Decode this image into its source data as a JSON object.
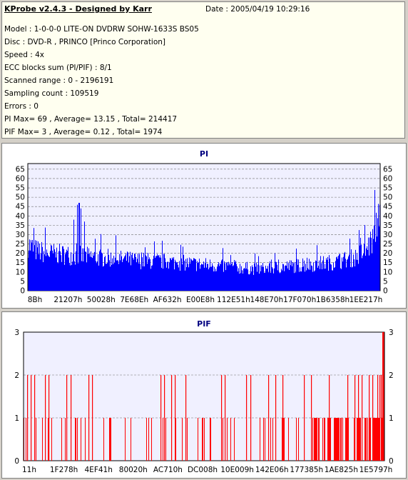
{
  "header": {
    "title": "KProbe v2.4.3 - Designed by Karr",
    "date": "Date : 2005/04/19 10:29:16"
  },
  "info_lines": [
    "Model : 1-0-0-0 LITE-ON DVDRW SOHW-1633S BS05",
    "Disc : DVD-R , PRINCO [Princo Corporation]",
    "Speed : 4x",
    "ECC blocks sum (PI/PIF) : 8/1",
    "Scanned range : 0 - 2196191",
    "Sampling count : 109519",
    "Errors : 0",
    "PI Max= 69 , Average= 13.15 , Total= 214417",
    "PIF Max= 3 , Average= 0.12 , Total= 1974"
  ],
  "colors": {
    "pi": "#0000ff",
    "pif": "#ff0000",
    "title": "#000080",
    "plot_bg": "#f0f0ff"
  },
  "chart_data": [
    {
      "type": "area",
      "title": "PI",
      "ylim": [
        0,
        68
      ],
      "yticks": [
        0,
        5,
        10,
        15,
        20,
        25,
        30,
        35,
        40,
        45,
        50,
        55,
        60,
        65
      ],
      "xtick_labels": [
        "8Bh",
        "21207h",
        "50028h",
        "7E68Eh",
        "AF632h",
        "E00E8h",
        "112E51h",
        "148E70h",
        "17F070h",
        "1B6358h",
        "1EE217h"
      ],
      "grid": true,
      "envelope": [
        [
          0,
          32
        ],
        [
          0.02,
          28
        ],
        [
          0.05,
          26
        ],
        [
          0.1,
          25
        ],
        [
          0.15,
          24
        ],
        [
          0.2,
          23
        ],
        [
          0.3,
          21
        ],
        [
          0.4,
          20
        ],
        [
          0.5,
          18
        ],
        [
          0.6,
          16
        ],
        [
          0.65,
          15
        ],
        [
          0.7,
          16
        ],
        [
          0.8,
          18
        ],
        [
          0.88,
          20
        ],
        [
          0.93,
          23
        ],
        [
          0.96,
          28
        ],
        [
          0.98,
          35
        ],
        [
          0.99,
          45
        ],
        [
          1.0,
          62
        ]
      ],
      "spikes": [
        [
          0.14,
          46
        ],
        [
          0.145,
          47
        ],
        [
          0.15,
          44
        ],
        [
          0.13,
          38
        ],
        [
          0.16,
          37
        ]
      ]
    },
    {
      "type": "bar",
      "title": "PIF",
      "ylim": [
        0,
        3
      ],
      "yticks": [
        0,
        1,
        2,
        3
      ],
      "xtick_labels": [
        "11h",
        "1F278h",
        "4EF41h",
        "80020h",
        "AC710h",
        "DC008h",
        "10E009h",
        "142E06h",
        "177385h",
        "1AE825h",
        "1E5797h"
      ],
      "grid": true,
      "bars_value_2": [
        0.01,
        0.02,
        0.03,
        0.06,
        0.07,
        0.12,
        0.13,
        0.18,
        0.19,
        0.38,
        0.39,
        0.41,
        0.42,
        0.45,
        0.55,
        0.56,
        0.62,
        0.63,
        0.68,
        0.7,
        0.72,
        0.78,
        0.8,
        0.85,
        0.9,
        0.92,
        0.93,
        0.94,
        0.96,
        0.97,
        0.985,
        0.99,
        0.995,
        1.0
      ],
      "dense_value_1_from": 0.8
    }
  ]
}
